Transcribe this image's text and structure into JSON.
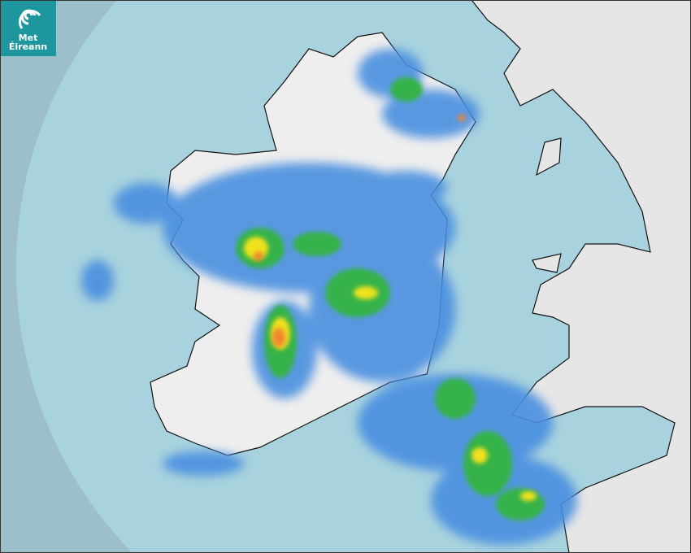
{
  "logo": {
    "line1": "Met",
    "line2": "Éireann",
    "color": "#1d979d"
  },
  "map": {
    "type": "precipitation-radar",
    "colors": {
      "outside_radar": "#9dbfcb",
      "radar_coverage": "#a8d2de",
      "sea": "#a8d2de",
      "land": "#eeeeee",
      "rain_light": "#4a8fe0",
      "rain_moderate": "#35b24a",
      "rain_heavy": "#f0e21c",
      "rain_very_heavy": "#f2862e"
    }
  }
}
